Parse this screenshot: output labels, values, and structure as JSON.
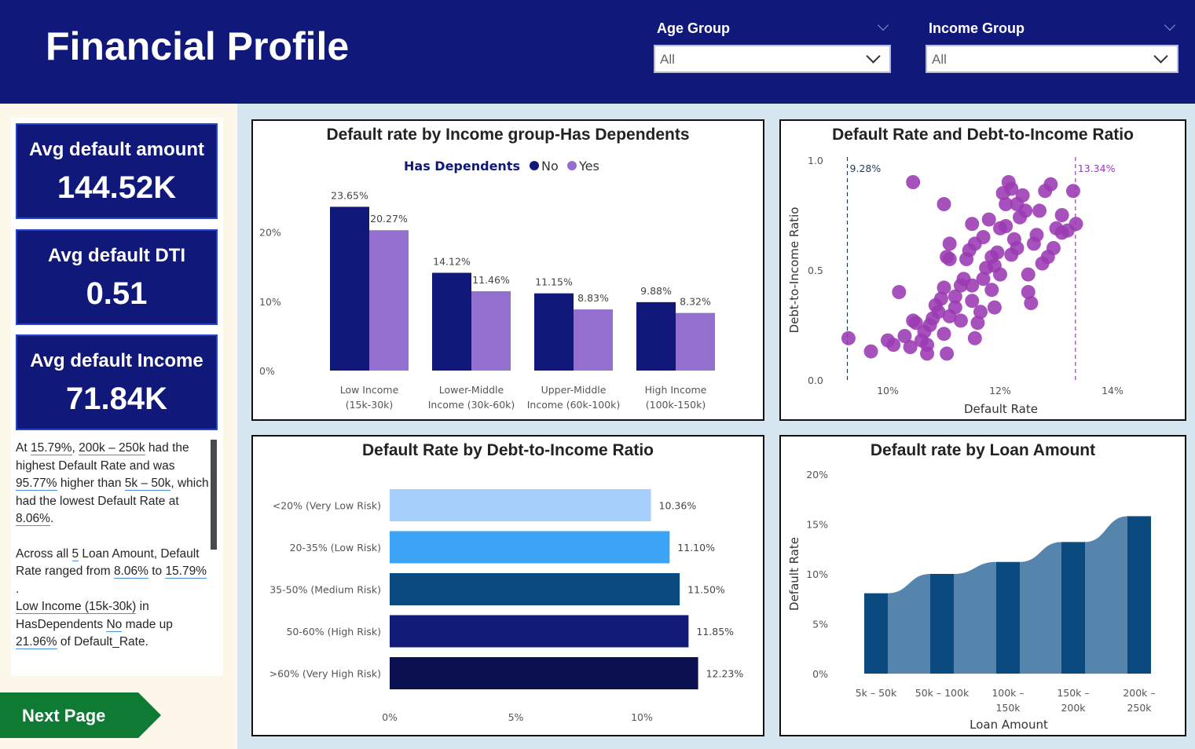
{
  "header": {
    "title": "Financial Profile",
    "slicers": [
      {
        "label": "Age Group",
        "value": "All"
      },
      {
        "label": "Income Group",
        "value": "All"
      }
    ]
  },
  "kpis": [
    {
      "label": "Avg default amount",
      "value": "144.52K"
    },
    {
      "label": "Avg default DTI",
      "value": "0.51"
    },
    {
      "label": "Avg default Income",
      "value": "71.84K"
    }
  ],
  "narrative": {
    "p1": [
      "At ",
      "15.79%",
      ", ",
      "200k – 250k",
      " had the highest Default Rate and was ",
      "95.77%",
      " higher than ",
      "5k – 50k",
      ", which had the lowest Default Rate at ",
      "8.06%",
      "."
    ],
    "p2": [
      "Across all ",
      "5",
      " Loan Amount, Default Rate ranged from ",
      "8.06%",
      " to ",
      "15.79%",
      " .",
      ""
    ],
    "p3": [
      "Low Income (15k-30k)",
      " in HasDependents ",
      "No",
      " made up ",
      "21.96%",
      " of Default_Rate."
    ]
  },
  "next_button": {
    "label": "Next Page",
    "color": "#0e7a33"
  },
  "chart_data": [
    {
      "type": "bar",
      "title": "Default rate by Income group-Has Dependents",
      "legend_title": "Has Dependents",
      "legend_position": "top-center",
      "categories": [
        [
          "Low Income",
          "(15k-30k)"
        ],
        [
          "Lower-Middle",
          "Income (30k-60k)"
        ],
        [
          "Upper-Middle",
          "Income (60k-100k)"
        ],
        [
          "High Income",
          "(100k-150k)"
        ]
      ],
      "series": [
        {
          "name": "No",
          "color": "#10187a",
          "values": [
            23.65,
            14.12,
            11.15,
            9.88
          ],
          "labels": [
            "23.65%",
            "14.12%",
            "11.15%",
            "9.88%"
          ]
        },
        {
          "name": "Yes",
          "color": "#9370cf",
          "values": [
            20.27,
            11.46,
            8.83,
            8.32
          ],
          "labels": [
            "20.27%",
            "11.46%",
            "8.83%",
            "8.32%"
          ]
        }
      ],
      "yticks": [
        "0%",
        "10%",
        "20%"
      ],
      "ylim": [
        0,
        25
      ]
    },
    {
      "type": "scatter",
      "title": "Default Rate and Debt-to-Income Ratio",
      "xlabel": "Default Rate",
      "ylabel": "Debt-to-Income Ratio",
      "xticks": [
        "10%",
        "12%",
        "14%"
      ],
      "yticks": [
        "0.0",
        "0.5",
        "1.0"
      ],
      "xlim": [
        9.0,
        14.0
      ],
      "ylim": [
        0,
        1.0
      ],
      "color": "#9b3ab3",
      "reference_lines": [
        {
          "value": 9.28,
          "label": "9.28%",
          "color": "#1f3b5c"
        },
        {
          "value": 13.34,
          "label": "13.34%",
          "color": "#9b3ab3"
        }
      ],
      "points": [
        [
          9.3,
          0.19
        ],
        [
          9.7,
          0.13
        ],
        [
          10.0,
          0.18
        ],
        [
          10.1,
          0.16
        ],
        [
          10.2,
          0.4
        ],
        [
          10.3,
          0.2
        ],
        [
          10.4,
          0.15
        ],
        [
          10.45,
          0.27
        ],
        [
          10.5,
          0.26
        ],
        [
          10.45,
          0.9
        ],
        [
          10.6,
          0.18
        ],
        [
          10.65,
          0.22
        ],
        [
          10.7,
          0.16
        ],
        [
          10.7,
          0.12
        ],
        [
          10.75,
          0.25
        ],
        [
          10.8,
          0.28
        ],
        [
          10.85,
          0.34
        ],
        [
          10.9,
          0.31
        ],
        [
          10.95,
          0.37
        ],
        [
          11.0,
          0.42
        ],
        [
          11.0,
          0.21
        ],
        [
          11.05,
          0.12
        ],
        [
          11.0,
          0.8
        ],
        [
          11.05,
          0.56
        ],
        [
          11.1,
          0.29
        ],
        [
          11.1,
          0.62
        ],
        [
          11.1,
          0.55
        ],
        [
          11.2,
          0.33
        ],
        [
          11.2,
          0.38
        ],
        [
          11.3,
          0.43
        ],
        [
          11.3,
          0.27
        ],
        [
          11.35,
          0.46
        ],
        [
          11.4,
          0.55
        ],
        [
          11.45,
          0.59
        ],
        [
          11.5,
          0.43
        ],
        [
          11.5,
          0.36
        ],
        [
          11.55,
          0.19
        ],
        [
          11.5,
          0.71
        ],
        [
          11.55,
          0.62
        ],
        [
          11.6,
          0.26
        ],
        [
          11.65,
          0.31
        ],
        [
          11.7,
          0.46
        ],
        [
          11.75,
          0.51
        ],
        [
          11.7,
          0.65
        ],
        [
          11.8,
          0.73
        ],
        [
          11.85,
          0.56
        ],
        [
          11.85,
          0.41
        ],
        [
          11.9,
          0.52
        ],
        [
          11.9,
          0.33
        ],
        [
          11.95,
          0.58
        ],
        [
          12.0,
          0.48
        ],
        [
          12.0,
          0.69
        ],
        [
          12.05,
          0.85
        ],
        [
          12.1,
          0.7
        ],
        [
          12.1,
          0.8
        ],
        [
          12.15,
          0.9
        ],
        [
          12.2,
          0.57
        ],
        [
          12.2,
          0.87
        ],
        [
          12.25,
          0.64
        ],
        [
          12.3,
          0.8
        ],
        [
          12.3,
          0.6
        ],
        [
          12.35,
          0.74
        ],
        [
          12.4,
          0.84
        ],
        [
          12.45,
          0.77
        ],
        [
          12.5,
          0.48
        ],
        [
          12.5,
          0.4
        ],
        [
          12.55,
          0.35
        ],
        [
          12.6,
          0.62
        ],
        [
          12.65,
          0.66
        ],
        [
          12.7,
          0.77
        ],
        [
          12.75,
          0.53
        ],
        [
          12.8,
          0.86
        ],
        [
          12.85,
          0.56
        ],
        [
          12.9,
          0.89
        ],
        [
          12.95,
          0.6
        ],
        [
          13.0,
          0.69
        ],
        [
          13.1,
          0.75
        ],
        [
          13.1,
          0.67
        ],
        [
          13.2,
          0.68
        ],
        [
          13.3,
          0.86
        ],
        [
          13.35,
          0.71
        ]
      ]
    },
    {
      "type": "bar",
      "orientation": "horizontal",
      "title": "Default Rate by Debt-to-Income Ratio",
      "categories": [
        "<20% (Very Low Risk)",
        "20-35% (Low Risk)",
        "35-50% (Medium Risk)",
        "50-60% (High Risk)",
        ">60% (Very High Risk)"
      ],
      "values": [
        10.36,
        11.1,
        11.5,
        11.85,
        12.23
      ],
      "labels": [
        "10.36%",
        "11.10%",
        "11.50%",
        "11.85%",
        "12.23%"
      ],
      "colors": [
        "#a6d0fb",
        "#3ca3f5",
        "#0b4a7e",
        "#121b78",
        "#0b1150"
      ],
      "xticks": [
        "0%",
        "5%",
        "10%"
      ],
      "xlim": [
        0,
        15
      ]
    },
    {
      "type": "area",
      "title": "Default rate by Loan Amount",
      "xlabel": "Loan Amount",
      "ylabel": "Default Rate",
      "categories": [
        [
          "5k – 50k"
        ],
        [
          "50k – 100k"
        ],
        [
          "100k –",
          "150k"
        ],
        [
          "150k –",
          "200k"
        ],
        [
          "200k –",
          "250k"
        ]
      ],
      "values": [
        8.06,
        10.0,
        11.2,
        13.2,
        15.79
      ],
      "bar_color": "#0b4a7e",
      "ribbon_color": "#5585ad",
      "yticks": [
        "0%",
        "5%",
        "10%",
        "15%",
        "20%"
      ],
      "ylim": [
        0,
        20
      ]
    }
  ]
}
